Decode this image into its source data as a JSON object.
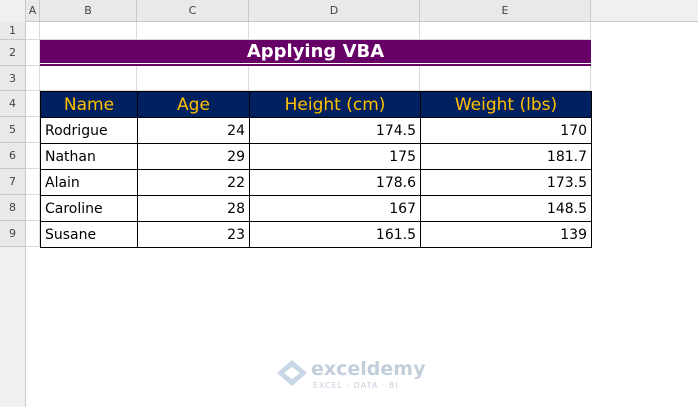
{
  "columns": [
    "A",
    "B",
    "C",
    "D",
    "E"
  ],
  "rows": [
    1,
    2,
    3,
    4,
    5,
    6,
    7,
    8,
    9
  ],
  "title": "Applying VBA",
  "table": {
    "header": [
      "Name",
      "Age",
      "Height (cm)",
      "Weight (lbs)"
    ],
    "rows": [
      [
        "Rodrigue",
        24,
        174.5,
        170
      ],
      [
        "Nathan",
        29,
        175,
        181.7
      ],
      [
        "Alain",
        22,
        178.6,
        173.5
      ],
      [
        "Caroline",
        28,
        167,
        148.5
      ],
      [
        "Susane",
        23,
        161.5,
        139
      ]
    ]
  },
  "watermark": {
    "name": "exceldemy",
    "tagline": "EXCEL · DATA · BI"
  }
}
